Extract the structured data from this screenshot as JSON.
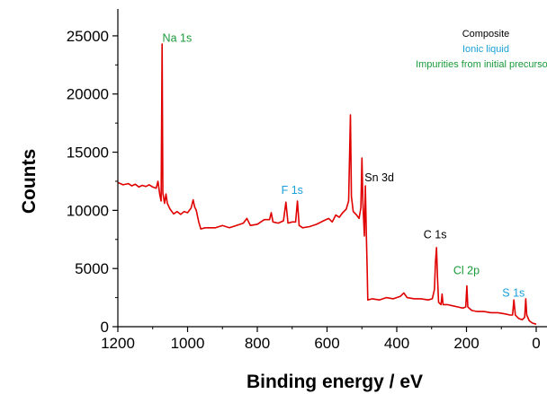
{
  "chart_data": {
    "type": "line",
    "title": "",
    "xlabel": "Binding energy / eV",
    "ylabel": "Counts",
    "xlim": [
      1200,
      0
    ],
    "ylim": [
      0,
      27000
    ],
    "x_reversed": true,
    "x_ticks": [
      1200,
      1000,
      800,
      600,
      400,
      200,
      0
    ],
    "y_ticks": [
      0,
      5000,
      10000,
      15000,
      20000,
      25000
    ],
    "line_color": "#e00000",
    "series": [
      {
        "values_description_points": [
          [
            1200,
            12400
          ],
          [
            1185,
            12200
          ],
          [
            1170,
            12300
          ],
          [
            1160,
            12100
          ],
          [
            1150,
            12250
          ],
          [
            1140,
            12000
          ],
          [
            1130,
            12150
          ],
          [
            1120,
            12050
          ],
          [
            1110,
            12200
          ],
          [
            1100,
            12000
          ],
          [
            1090,
            11900
          ],
          [
            1085,
            12500
          ],
          [
            1080,
            11400
          ],
          [
            1076,
            10800
          ],
          [
            1073,
            24300
          ],
          [
            1071,
            11500
          ],
          [
            1066,
            10600
          ],
          [
            1062,
            11400
          ],
          [
            1058,
            10600
          ],
          [
            1050,
            10100
          ],
          [
            1040,
            9700
          ],
          [
            1030,
            9900
          ],
          [
            1020,
            9650
          ],
          [
            1010,
            9900
          ],
          [
            1000,
            9800
          ],
          [
            990,
            10200
          ],
          [
            984,
            10900
          ],
          [
            980,
            10300
          ],
          [
            975,
            10000
          ],
          [
            968,
            9000
          ],
          [
            962,
            8400
          ],
          [
            950,
            8500
          ],
          [
            920,
            8500
          ],
          [
            900,
            8700
          ],
          [
            880,
            8500
          ],
          [
            860,
            8700
          ],
          [
            840,
            8900
          ],
          [
            830,
            9300
          ],
          [
            820,
            8700
          ],
          [
            800,
            8800
          ],
          [
            780,
            9200
          ],
          [
            765,
            9200
          ],
          [
            760,
            9800
          ],
          [
            755,
            9000
          ],
          [
            740,
            8900
          ],
          [
            725,
            9100
          ],
          [
            718,
            10700
          ],
          [
            712,
            8900
          ],
          [
            700,
            9000
          ],
          [
            690,
            9000
          ],
          [
            685,
            10800
          ],
          [
            680,
            8700
          ],
          [
            670,
            8500
          ],
          [
            650,
            8600
          ],
          [
            630,
            8800
          ],
          [
            610,
            9100
          ],
          [
            595,
            9300
          ],
          [
            585,
            9000
          ],
          [
            575,
            9600
          ],
          [
            565,
            9400
          ],
          [
            555,
            9800
          ],
          [
            545,
            10100
          ],
          [
            538,
            10800
          ],
          [
            533,
            18200
          ],
          [
            530,
            11200
          ],
          [
            525,
            9900
          ],
          [
            515,
            9600
          ],
          [
            508,
            9300
          ],
          [
            503,
            10200
          ],
          [
            500,
            14500
          ],
          [
            497,
            10600
          ],
          [
            493,
            7800
          ],
          [
            490,
            12100
          ],
          [
            487,
            7600
          ],
          [
            485,
            5000
          ],
          [
            483,
            2300
          ],
          [
            470,
            2400
          ],
          [
            450,
            2300
          ],
          [
            430,
            2500
          ],
          [
            410,
            2400
          ],
          [
            390,
            2600
          ],
          [
            380,
            2900
          ],
          [
            370,
            2500
          ],
          [
            350,
            2400
          ],
          [
            330,
            2400
          ],
          [
            310,
            2300
          ],
          [
            298,
            2400
          ],
          [
            292,
            3200
          ],
          [
            289,
            5500
          ],
          [
            286,
            6800
          ],
          [
            283,
            4200
          ],
          [
            280,
            2100
          ],
          [
            273,
            1900
          ],
          [
            270,
            2800
          ],
          [
            267,
            1900
          ],
          [
            255,
            1900
          ],
          [
            240,
            1800
          ],
          [
            225,
            1700
          ],
          [
            210,
            1600
          ],
          [
            202,
            1700
          ],
          [
            199,
            3500
          ],
          [
            196,
            1700
          ],
          [
            185,
            1400
          ],
          [
            170,
            1300
          ],
          [
            150,
            1300
          ],
          [
            130,
            1200
          ],
          [
            110,
            1200
          ],
          [
            90,
            1100
          ],
          [
            75,
            1000
          ],
          [
            68,
            1000
          ],
          [
            64,
            2300
          ],
          [
            60,
            1000
          ],
          [
            50,
            700
          ],
          [
            40,
            600
          ],
          [
            33,
            800
          ],
          [
            30,
            2400
          ],
          [
            27,
            1000
          ],
          [
            20,
            500
          ],
          [
            10,
            300
          ],
          [
            3,
            250
          ],
          [
            0,
            200
          ]
        ]
      }
    ],
    "annotations": [
      {
        "text": "Na 1s",
        "color": "#1a9a3a",
        "x": 1030,
        "y": 24500
      },
      {
        "text": "F 1s",
        "color": "#1aa0d8",
        "x": 700,
        "y": 11400
      },
      {
        "text": "Sn 3d",
        "color": "#000000",
        "x": 450,
        "y": 12500
      },
      {
        "text": "C 1s",
        "color": "#000000",
        "x": 290,
        "y": 7600
      },
      {
        "text": "Cl 2p",
        "color": "#1a9a3a",
        "x": 200,
        "y": 4500
      },
      {
        "text": "S 1s",
        "color": "#1aa0d8",
        "x": 65,
        "y": 2600
      }
    ],
    "legend": {
      "placement": "top-right",
      "entries": [
        {
          "label": "Composite",
          "color": "#000000"
        },
        {
          "label": "Ionic liquid",
          "color": "#1aa0d8"
        },
        {
          "label": "Impurities from initial precursors",
          "color": "#1a9a3a"
        }
      ]
    }
  }
}
